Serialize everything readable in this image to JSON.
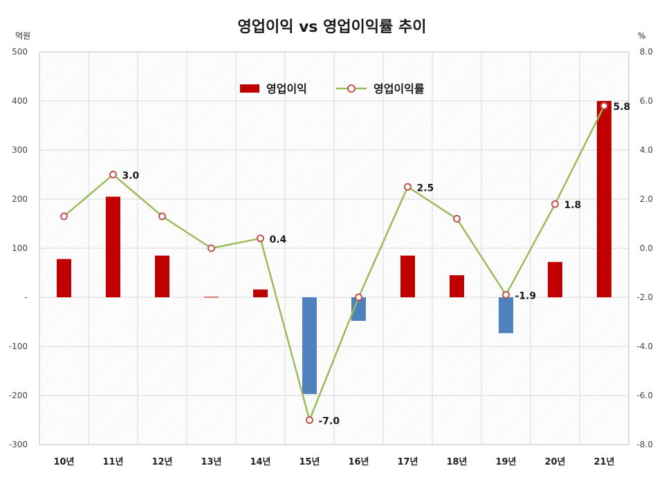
{
  "chart_data": {
    "type": "bar",
    "title": "영업이익 vs 영업이익률 추이",
    "categories": [
      "10년",
      "11년",
      "12년",
      "13년",
      "14년",
      "15년",
      "16년",
      "17년",
      "18년",
      "19년",
      "20년",
      "21년"
    ],
    "series": [
      {
        "name": "영업이익",
        "type": "bar",
        "axis": "left",
        "values": [
          78,
          205,
          85,
          1,
          16,
          -197,
          -48,
          85,
          45,
          -73,
          72,
          400
        ]
      },
      {
        "name": "영업이익률",
        "type": "line",
        "axis": "right",
        "values": [
          1.3,
          3.0,
          1.3,
          0.0,
          0.4,
          -7.0,
          -2.0,
          2.5,
          1.2,
          -1.9,
          1.8,
          5.8
        ]
      }
    ],
    "ylabel_left": "억원",
    "ylabel_right": "%",
    "ylim_left": [
      -300,
      500
    ],
    "ylim_right": [
      -8.0,
      8.0
    ],
    "yticks_left": [
      "500",
      "400",
      "300",
      "200",
      "100",
      "-",
      "-100",
      "-200",
      "-300"
    ],
    "yticks_right": [
      "8.0",
      "6.0",
      "4.0",
      "2.0",
      "0.0",
      "-2.0",
      "-4.0",
      "-6.0",
      "-8.0"
    ],
    "data_labels": [
      {
        "index": 1,
        "text": "3.0"
      },
      {
        "index": 4,
        "text": "0.4"
      },
      {
        "index": 5,
        "text": "-7.0"
      },
      {
        "index": 7,
        "text": "2.5"
      },
      {
        "index": 9,
        "text": "-1.9"
      },
      {
        "index": 10,
        "text": "1.8"
      },
      {
        "index": 11,
        "text": "5.8"
      }
    ],
    "legend_position": "top-center",
    "grid": true,
    "colors": {
      "positive_bar": "#C00000",
      "negative_bar": "#4F81BD",
      "line": "#9BBB59",
      "marker_edge": "#C0504D",
      "marker_fill": "#ffffff",
      "grid": "#d9d9d9"
    }
  }
}
